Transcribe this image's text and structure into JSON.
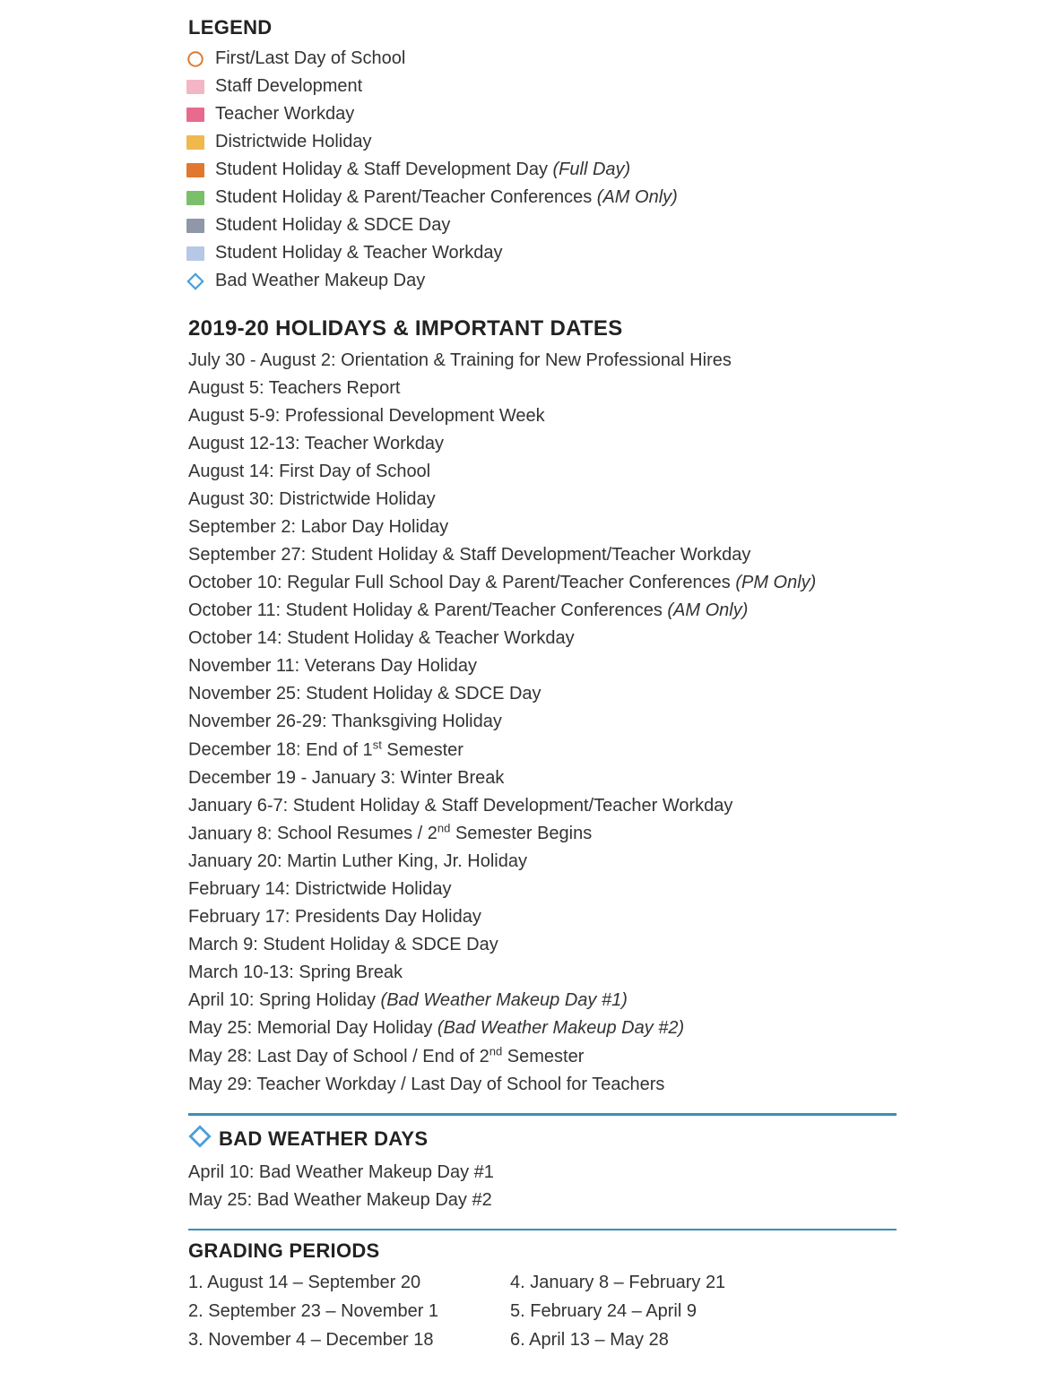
{
  "colors": {
    "text": "#333333",
    "heading": "#222222",
    "divider": "#3a8fb7",
    "circle_stroke": "#e0792f",
    "diamond_stroke": "#4aa0d8",
    "swatch_pink_light": "#f3b6c6",
    "swatch_pink_dark": "#e86b8e",
    "swatch_orange_light": "#f0b94e",
    "swatch_orange_dark": "#e0792f",
    "swatch_green": "#7cbf6b",
    "swatch_gray": "#8f97a8",
    "swatch_blue_light": "#b6c8e6"
  },
  "legend": {
    "heading": "LEGEND",
    "items": [
      {
        "icon": "circle-outline",
        "label": "First/Last Day of School"
      },
      {
        "icon": "sq",
        "color_key": "swatch_pink_light",
        "label": "Staff Development"
      },
      {
        "icon": "sq",
        "color_key": "swatch_pink_dark",
        "label": "Teacher Workday"
      },
      {
        "icon": "sq",
        "color_key": "swatch_orange_light",
        "label": "Districtwide Holiday"
      },
      {
        "icon": "sq",
        "color_key": "swatch_orange_dark",
        "label": "Student Holiday & Staff Development Day",
        "paren": "(Full Day)"
      },
      {
        "icon": "sq",
        "color_key": "swatch_green",
        "label": "Student Holiday & Parent/Teacher Conferences",
        "paren": "(AM Only)"
      },
      {
        "icon": "sq",
        "color_key": "swatch_gray",
        "label": "Student Holiday & SDCE Day"
      },
      {
        "icon": "sq",
        "color_key": "swatch_blue_light",
        "label": "Student Holiday & Teacher Workday"
      },
      {
        "icon": "diamond-outline",
        "label": "Bad Weather Makeup Day"
      }
    ]
  },
  "dates": {
    "heading": "2019-20 HOLIDAYS & IMPORTANT DATES",
    "items": [
      {
        "date": "July 30 - August 2",
        "desc": "Orientation & Training for New Professional Hires"
      },
      {
        "date": "August 5",
        "desc": "Teachers Report"
      },
      {
        "date": "August 5-9",
        "desc": "Professional Development Week"
      },
      {
        "date": "August 12-13",
        "desc": "Teacher Workday"
      },
      {
        "date": "August 14",
        "desc": "First Day of School"
      },
      {
        "date": "August 30",
        "desc": "Districtwide Holiday"
      },
      {
        "date": "September 2",
        "desc": "Labor Day Holiday"
      },
      {
        "date": "September 27",
        "desc": "Student Holiday & Staff Development/Teacher Workday"
      },
      {
        "date": "October 10",
        "desc": "Regular Full School Day & Parent/Teacher Conferences",
        "paren": "(PM Only)"
      },
      {
        "date": "October 11",
        "desc": "Student Holiday & Parent/Teacher Conferences",
        "paren": "(AM Only)"
      },
      {
        "date": "October 14",
        "desc": "Student Holiday & Teacher Workday"
      },
      {
        "date": "November 11",
        "desc": "Veterans Day Holiday"
      },
      {
        "date": "November 25",
        "desc": "Student Holiday & SDCE Day"
      },
      {
        "date": "November 26-29",
        "desc": "Thanksgiving Holiday"
      },
      {
        "date": "December 18",
        "desc_html": "End of 1<sup>st</sup> Semester"
      },
      {
        "date": "December 19 - January 3",
        "desc": "Winter Break"
      },
      {
        "date": "January 6-7",
        "desc": "Student Holiday & Staff Development/Teacher Workday"
      },
      {
        "date": "January 8",
        "desc_html": "School Resumes / 2<sup>nd</sup> Semester Begins"
      },
      {
        "date": "January 20",
        "desc": "Martin Luther King, Jr. Holiday"
      },
      {
        "date": "February 14",
        "desc": "Districtwide Holiday"
      },
      {
        "date": "February 17",
        "desc": "Presidents Day Holiday"
      },
      {
        "date": "March 9",
        "desc": "Student Holiday & SDCE Day"
      },
      {
        "date": "March 10-13",
        "desc": "Spring Break"
      },
      {
        "date": "April 10",
        "desc": "Spring Holiday",
        "paren": "(Bad Weather Makeup Day #1)"
      },
      {
        "date": "May 25",
        "desc": "Memorial Day Holiday",
        "paren": "(Bad Weather Makeup Day #2)"
      },
      {
        "date": "May 28",
        "desc_html": "Last Day of School / End of 2<sup>nd</sup> Semester"
      },
      {
        "date": "May 29",
        "desc": "Teacher Workday / Last Day of School for Teachers"
      }
    ]
  },
  "bad_weather": {
    "heading": "BAD WEATHER DAYS",
    "items": [
      {
        "date": "April 10",
        "desc": "Bad Weather Makeup Day #1"
      },
      {
        "date": "May 25",
        "desc": "Bad Weather Makeup Day #2"
      }
    ]
  },
  "grading": {
    "heading": "GRADING PERIODS",
    "left": [
      {
        "n": "1.",
        "range": "August 14 – September 20"
      },
      {
        "n": "2.",
        "range": "September 23 – November 1"
      },
      {
        "n": "3.",
        "range": "November 4 – December 18"
      }
    ],
    "right": [
      {
        "n": "4.",
        "range": "January 8 – February 21"
      },
      {
        "n": "5.",
        "range": "February 24 – April 9"
      },
      {
        "n": "6.",
        "range": "April 13 – May 28"
      }
    ]
  }
}
